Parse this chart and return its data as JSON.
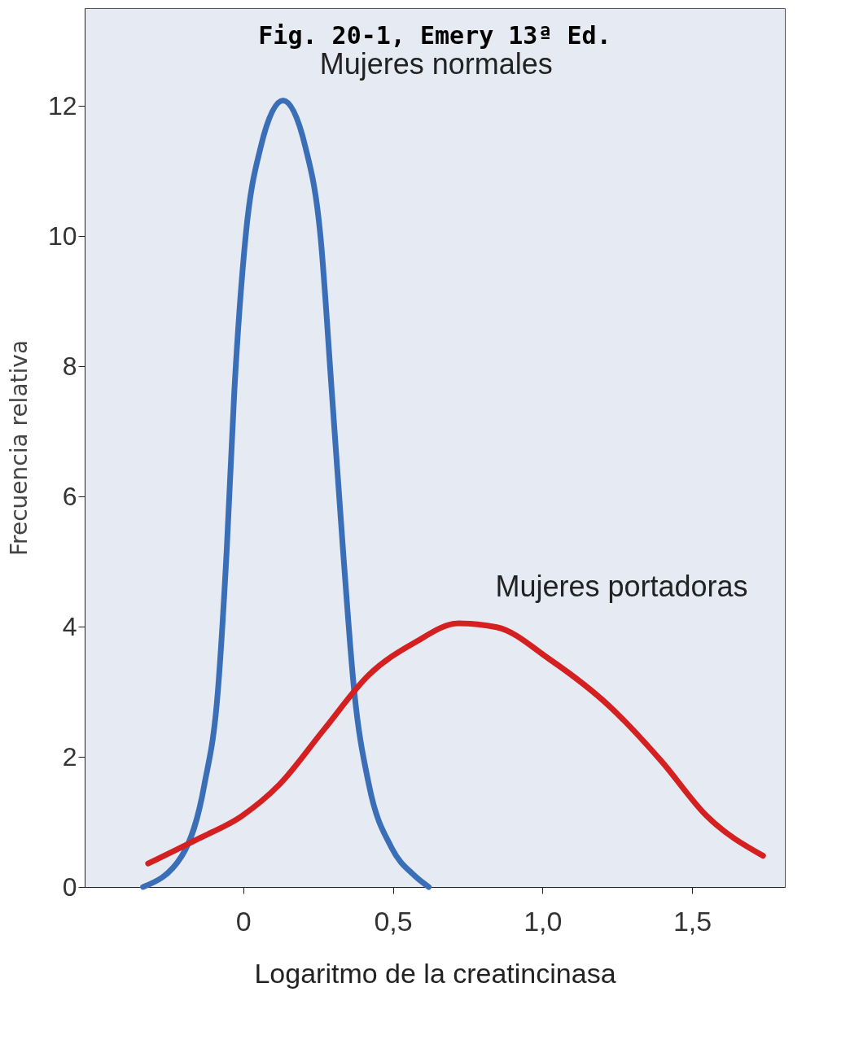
{
  "chart_data": {
    "type": "line",
    "title": "Fig. 20-1, Emery 13ª Ed.",
    "xlabel": "Logaritmo de la creatincinasa",
    "ylabel": "Frecuencia relativa",
    "xlim": [
      -0.53,
      1.81
    ],
    "ylim": [
      0,
      13.5
    ],
    "xticks": [
      0,
      {
        "value": 0.5,
        "label": "0,5"
      },
      {
        "value": 1,
        "label": "1,0"
      },
      {
        "value": 1.5,
        "label": "1,5"
      }
    ],
    "yticks": [
      0,
      2,
      4,
      6,
      8,
      10,
      12
    ],
    "grid": false,
    "legend": false,
    "marker": "none",
    "line_style": "solid",
    "series": [
      {
        "name": "Mujeres normales",
        "color": "#3a6fb8",
        "x": [
          -0.335,
          -0.205,
          -0.13,
          -0.085,
          -0.055,
          -0.03,
          0.008,
          0.058,
          0.133,
          0.208,
          0.258,
          0.296,
          0.333,
          0.371,
          0.42,
          0.496,
          0.571,
          0.62
        ],
        "values": [
          0,
          0.48,
          1.57,
          3.0,
          5.2,
          7.6,
          10.0,
          11.36,
          12.08,
          11.36,
          10.0,
          7.6,
          5.2,
          3.0,
          1.57,
          0.6,
          0.18,
          0
        ]
      },
      {
        "name": "Mujeres portadoras",
        "color": "#d42020",
        "x": [
          -0.318,
          -0.155,
          -0.005,
          0.12,
          0.27,
          0.42,
          0.571,
          0.72,
          0.847,
          1.023,
          1.223,
          1.398,
          1.549,
          1.737
        ],
        "values": [
          0.36,
          0.73,
          1.09,
          1.57,
          2.42,
          3.26,
          3.75,
          4.05,
          3.99,
          3.5,
          2.78,
          1.93,
          1.09,
          0.48
        ]
      }
    ]
  }
}
